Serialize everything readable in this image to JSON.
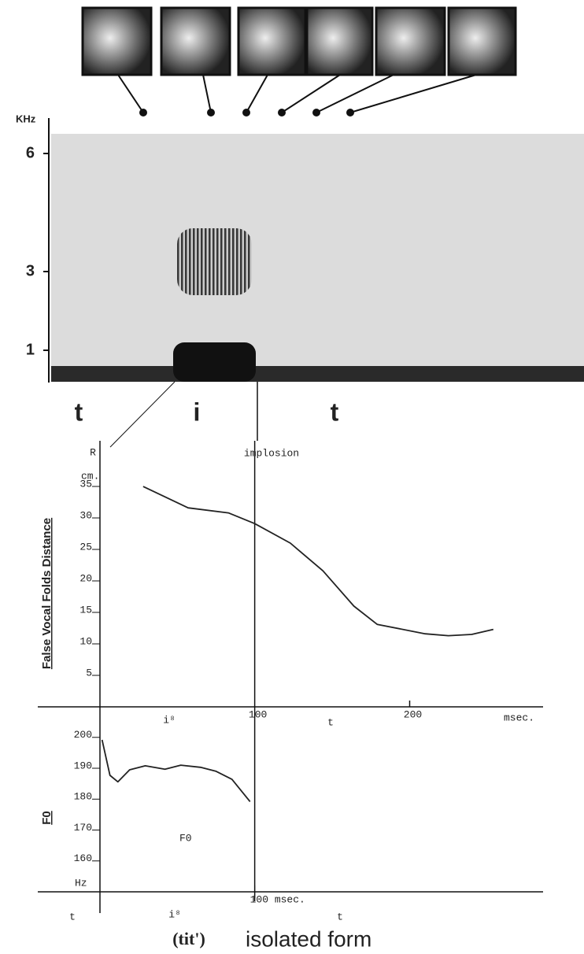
{
  "chart_data": [
    {
      "type": "spectrogram",
      "y_unit": "KHz",
      "ylim": [
        0.2,
        6.5
      ],
      "yticks": [
        1,
        3,
        6
      ],
      "segments": [
        "t",
        "i",
        "t"
      ]
    },
    {
      "type": "line",
      "ylabel": "False Vocal Folds Distance",
      "y_unit": "cm.",
      "x_unit": "msec.",
      "annotations": [
        "R",
        "implosion"
      ],
      "phase_labels": [
        "i⁸",
        "t"
      ],
      "xlim": [
        -40,
        280
      ],
      "xticks": [
        100,
        200
      ],
      "ylim": [
        0,
        38.5
      ],
      "yticks": [
        5,
        10,
        15,
        20,
        25,
        30,
        35
      ],
      "series": [
        {
          "color": "#222222",
          "x": [
            28,
            57,
            83,
            100,
            123,
            144,
            164,
            179,
            210,
            225,
            240,
            254
          ],
          "values": [
            35,
            31.6,
            30.8,
            29.1,
            26,
            21.6,
            16,
            13.1,
            11.6,
            11.3,
            11.5,
            12.3
          ]
        }
      ]
    },
    {
      "type": "line",
      "ylabel": "F0",
      "y_unit": "Hz",
      "phase_labels": [
        "t",
        "i⁸",
        "t"
      ],
      "xlim": [
        -40,
        280
      ],
      "xticks": [
        {
          "value": 100,
          "label": "100 msec."
        }
      ],
      "ylim": [
        150,
        203
      ],
      "yticks": [
        160,
        170,
        180,
        190,
        200
      ],
      "series": [
        {
          "name": "F0",
          "color": "#222222",
          "x": [
            1.5,
            6.6,
            11.7,
            19.3,
            29.4,
            42.1,
            52.3,
            65,
            75.1,
            85.3,
            97
          ],
          "values": [
            199.2,
            187.7,
            185.6,
            189.5,
            190.8,
            189.7,
            191,
            190.3,
            189,
            186.4,
            179.2
          ]
        }
      ]
    }
  ],
  "caption": {
    "transcription": "(tit')",
    "label": "isolated form"
  }
}
